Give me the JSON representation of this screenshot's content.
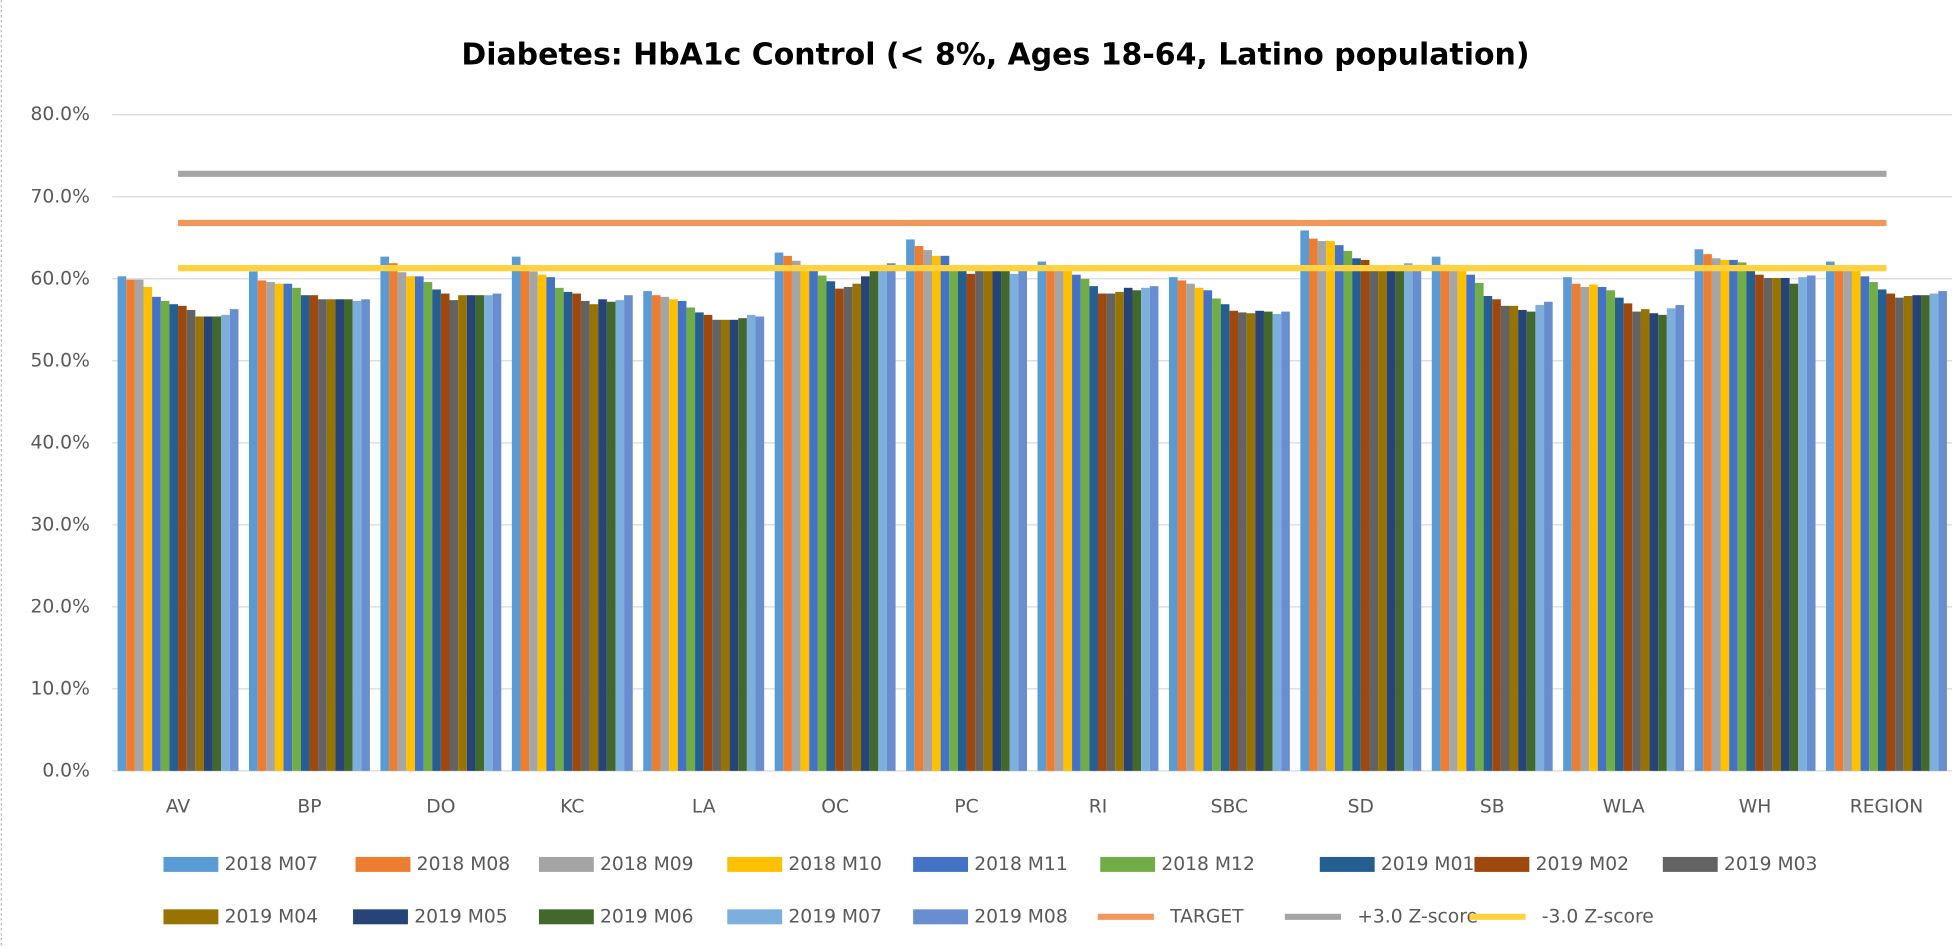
{
  "chart_data": {
    "type": "bar",
    "title": "Diabetes: HbA1c Control (< 8%, Ages 18-64, Latino population)",
    "categories": [
      "AV",
      "BP",
      "DO",
      "KC",
      "LA",
      "OC",
      "PC",
      "RI",
      "SBC",
      "SD",
      "SB",
      "WLA",
      "WH",
      "REGION"
    ],
    "ylim": [
      0,
      80
    ],
    "yticks": [
      {
        "value": 0,
        "label": "0.0%"
      },
      {
        "value": 10,
        "label": "10.0%"
      },
      {
        "value": 20,
        "label": "20.0%"
      },
      {
        "value": 30,
        "label": "30.0%"
      },
      {
        "value": 40,
        "label": "40.0%"
      },
      {
        "value": 50,
        "label": "50.0%"
      },
      {
        "value": 60,
        "label": "60.0%"
      },
      {
        "value": 70,
        "label": "70.0%"
      },
      {
        "value": 80,
        "label": "80.0%"
      }
    ],
    "grid": true,
    "legend": "bottom",
    "series": [
      {
        "name": "2018 M07",
        "color": "#5b9bd5",
        "values": [
          60.3,
          60.9,
          62.7,
          62.7,
          58.5,
          63.2,
          64.8,
          62.1,
          60.2,
          65.9,
          62.7,
          60.2,
          63.6,
          62.1
        ]
      },
      {
        "name": "2018 M08",
        "color": "#ed7d31",
        "values": [
          59.9,
          59.8,
          61.9,
          61.0,
          58.0,
          62.8,
          64.0,
          61.5,
          59.8,
          64.9,
          61.7,
          59.4,
          63.0,
          61.5
        ]
      },
      {
        "name": "2018 M09",
        "color": "#a5a5a5",
        "values": [
          59.9,
          59.6,
          60.8,
          60.9,
          57.8,
          62.2,
          63.5,
          61.0,
          59.4,
          64.6,
          61.3,
          59.0,
          62.5,
          61.3
        ]
      },
      {
        "name": "2018 M10",
        "color": "#ffc000",
        "values": [
          59.0,
          59.4,
          60.3,
          60.5,
          57.5,
          61.0,
          62.8,
          61.0,
          58.9,
          64.6,
          61.3,
          59.3,
          62.3,
          61.0
        ]
      },
      {
        "name": "2018 M11",
        "color": "#4472c4",
        "values": [
          57.8,
          59.4,
          60.3,
          60.2,
          57.3,
          61.0,
          62.8,
          60.5,
          58.6,
          64.1,
          60.5,
          59.0,
          62.3,
          60.3
        ]
      },
      {
        "name": "2018 M12",
        "color": "#70ad47",
        "values": [
          57.3,
          58.9,
          59.6,
          58.9,
          56.5,
          60.4,
          61.0,
          60.0,
          57.6,
          63.4,
          59.5,
          58.6,
          62.0,
          59.6
        ]
      },
      {
        "name": "2019 M01",
        "color": "#255e91",
        "values": [
          56.9,
          58.0,
          58.7,
          58.4,
          55.9,
          59.7,
          61.0,
          59.1,
          56.9,
          62.5,
          57.9,
          57.7,
          61.5,
          58.7
        ]
      },
      {
        "name": "2019 M02",
        "color": "#9e480e",
        "values": [
          56.7,
          58.0,
          58.2,
          58.2,
          55.6,
          58.8,
          60.6,
          58.2,
          56.1,
          62.3,
          57.5,
          57.0,
          60.5,
          58.2
        ]
      },
      {
        "name": "2019 M03",
        "color": "#636363",
        "values": [
          56.2,
          57.5,
          57.4,
          57.3,
          55.0,
          59.0,
          61.0,
          58.2,
          55.9,
          61.0,
          56.7,
          56.0,
          60.1,
          57.7
        ]
      },
      {
        "name": "2019 M04",
        "color": "#997300",
        "values": [
          55.4,
          57.5,
          58.0,
          56.9,
          55.0,
          59.4,
          61.0,
          58.4,
          55.8,
          61.0,
          56.7,
          56.3,
          60.1,
          57.9
        ]
      },
      {
        "name": "2019 M05",
        "color": "#264478",
        "values": [
          55.4,
          57.5,
          58.0,
          57.5,
          55.0,
          60.3,
          61.0,
          58.9,
          56.1,
          61.0,
          56.2,
          55.8,
          60.1,
          58.0
        ]
      },
      {
        "name": "2019 M06",
        "color": "#43682b",
        "values": [
          55.4,
          57.5,
          58.0,
          57.2,
          55.2,
          61.0,
          61.0,
          58.6,
          56.0,
          61.0,
          56.0,
          55.6,
          59.4,
          58.0
        ]
      },
      {
        "name": "2019 M07",
        "color": "#7cafdd",
        "values": [
          55.6,
          57.3,
          58.0,
          57.4,
          55.6,
          61.0,
          60.6,
          58.9,
          55.7,
          61.9,
          56.8,
          56.4,
          60.2,
          58.2
        ]
      },
      {
        "name": "2019 M08",
        "color": "#698ed0",
        "values": [
          56.3,
          57.5,
          58.2,
          58.0,
          55.4,
          61.9,
          61.0,
          59.1,
          56.0,
          61.5,
          57.2,
          56.8,
          60.4,
          58.5
        ]
      },
      {
        "name": "TARGET",
        "color": "#f1975a",
        "type": "line",
        "values": [
          66.8,
          66.8,
          66.8,
          66.8,
          66.8,
          66.8,
          66.8,
          66.8,
          66.8,
          66.8,
          66.8,
          66.8,
          66.8,
          66.8
        ]
      },
      {
        "name": "+3.0 Z-score",
        "color": "#a5a5a5",
        "type": "line",
        "values": [
          72.8,
          72.8,
          72.8,
          72.8,
          72.8,
          72.8,
          72.8,
          72.8,
          72.8,
          72.8,
          72.8,
          72.8,
          72.8,
          72.8
        ]
      },
      {
        "name": "-3.0 Z-score",
        "color": "#ffd23f",
        "type": "line",
        "values": [
          61.3,
          61.3,
          61.3,
          61.3,
          61.3,
          61.3,
          61.3,
          61.3,
          61.3,
          61.3,
          61.3,
          61.3,
          61.3,
          61.3
        ]
      }
    ]
  }
}
